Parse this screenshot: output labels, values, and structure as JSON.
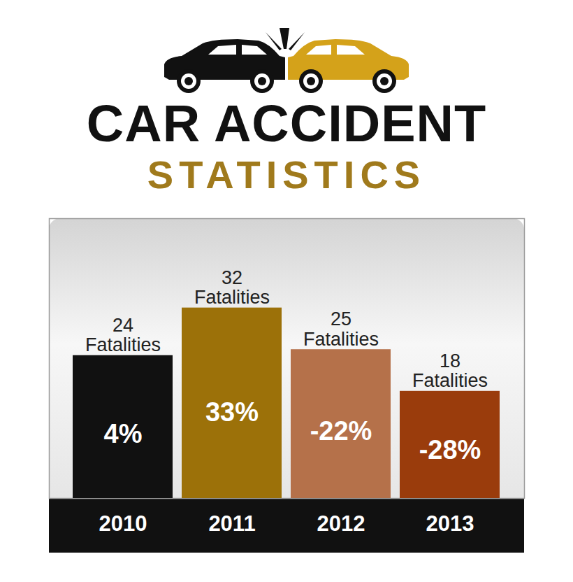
{
  "chart_data": {
    "type": "bar",
    "title": "CAR ACCIDENT",
    "subtitle": "STATISTICS",
    "categories": [
      "2010",
      "2011",
      "2012",
      "2013"
    ],
    "values": [
      24,
      32,
      25,
      18
    ],
    "value_labels": [
      "24 Fatalities",
      "32 Fatalities",
      "25 Fatalities",
      "18 Fatalities"
    ],
    "percent_change": [
      4,
      33,
      -22,
      -28
    ],
    "percent_change_labels": [
      "4%",
      "33%",
      "-22%",
      "-28%"
    ],
    "colors": [
      "#111111",
      "#9c7109",
      "#b5714a",
      "#9a3c0c"
    ],
    "ylim": [
      0,
      47
    ],
    "tick_labels": "x",
    "data_labels": true
  }
}
